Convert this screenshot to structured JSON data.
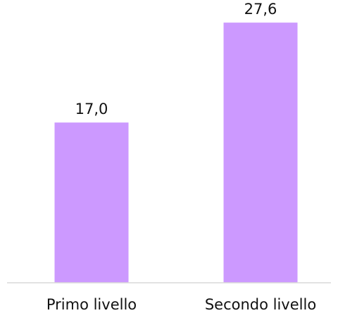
{
  "chart_data": {
    "type": "bar",
    "title": "",
    "xlabel": "",
    "ylabel": "",
    "categories": [
      "Primo livello",
      "Secondo livello"
    ],
    "values": [
      17.0,
      27.6
    ],
    "data_labels": [
      "17,0",
      "27,6"
    ],
    "ylim": [
      0,
      30
    ],
    "grid": false,
    "legend": "none",
    "colors": {
      "bar": "#cc99ff",
      "axis": "#d9d9d9",
      "text": "#111111"
    }
  }
}
